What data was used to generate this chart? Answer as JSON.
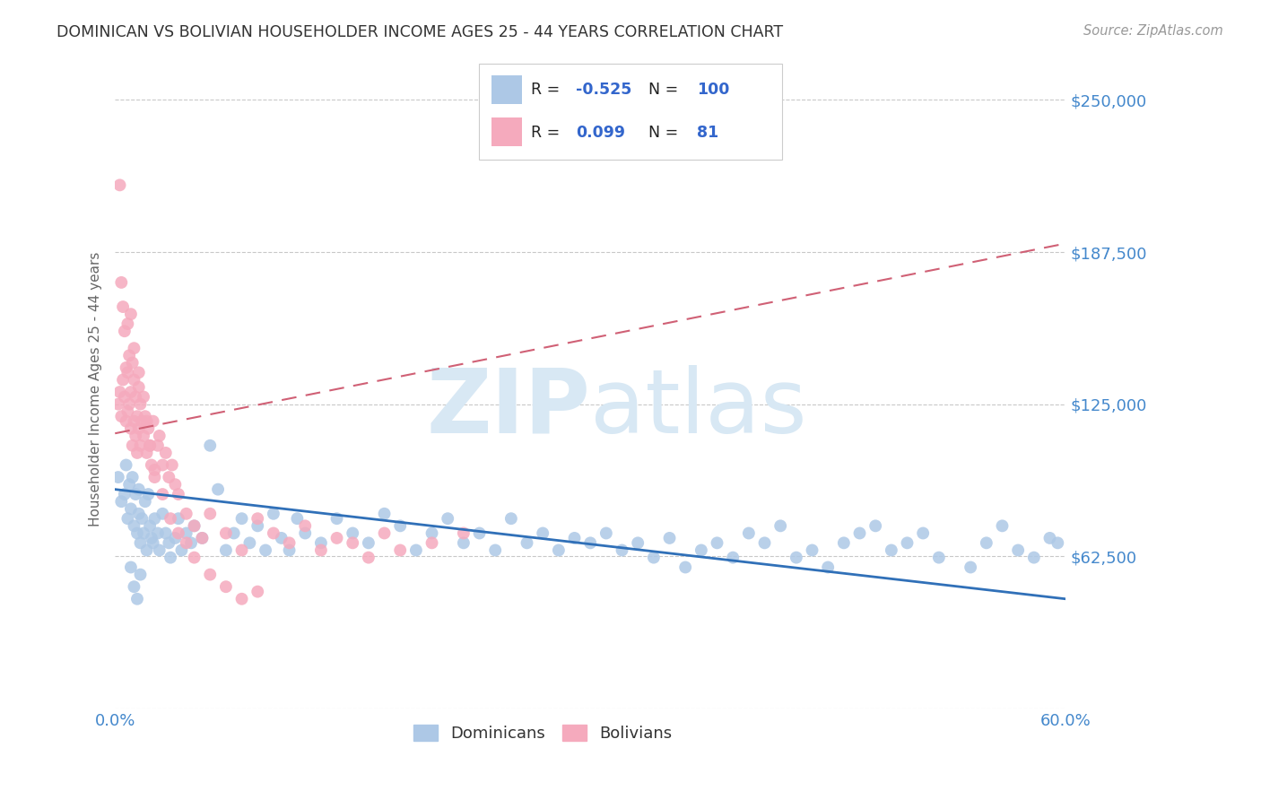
{
  "title": "DOMINICAN VS BOLIVIAN HOUSEHOLDER INCOME AGES 25 - 44 YEARS CORRELATION CHART",
  "source": "Source: ZipAtlas.com",
  "ylabel": "Householder Income Ages 25 - 44 years",
  "xlim": [
    0.0,
    0.6
  ],
  "ylim": [
    0,
    262500
  ],
  "yticks": [
    0,
    62500,
    125000,
    187500,
    250000
  ],
  "ytick_labels": [
    "",
    "$62,500",
    "$125,000",
    "$187,500",
    "$250,000"
  ],
  "xticks": [
    0.0,
    0.1,
    0.2,
    0.3,
    0.4,
    0.5,
    0.6
  ],
  "xtick_labels": [
    "0.0%",
    "",
    "",
    "",
    "",
    "",
    "60.0%"
  ],
  "dominican_R": -0.525,
  "dominican_N": 100,
  "bolivian_R": 0.099,
  "bolivian_N": 81,
  "blue_color": "#adc8e6",
  "pink_color": "#f5aabd",
  "blue_line_color": "#3070b8",
  "pink_line_color": "#d06075",
  "title_color": "#333333",
  "axis_label_color": "#4488cc",
  "watermark_color": "#d8e8f4",
  "grid_color": "#bbbbbb",
  "legend_R_color": "#3366cc",
  "blue_intercept": 90000,
  "blue_slope": -75000,
  "pink_intercept": 113000,
  "pink_slope": 130000,
  "dominican_x": [
    0.002,
    0.004,
    0.006,
    0.007,
    0.008,
    0.009,
    0.01,
    0.011,
    0.012,
    0.013,
    0.014,
    0.015,
    0.015,
    0.016,
    0.017,
    0.018,
    0.019,
    0.02,
    0.021,
    0.022,
    0.023,
    0.024,
    0.025,
    0.027,
    0.028,
    0.03,
    0.032,
    0.034,
    0.035,
    0.038,
    0.04,
    0.042,
    0.045,
    0.048,
    0.05,
    0.055,
    0.06,
    0.065,
    0.07,
    0.075,
    0.08,
    0.085,
    0.09,
    0.095,
    0.1,
    0.105,
    0.11,
    0.115,
    0.12,
    0.13,
    0.14,
    0.15,
    0.16,
    0.17,
    0.18,
    0.19,
    0.2,
    0.21,
    0.22,
    0.23,
    0.24,
    0.25,
    0.26,
    0.27,
    0.28,
    0.29,
    0.3,
    0.31,
    0.32,
    0.33,
    0.34,
    0.35,
    0.36,
    0.37,
    0.38,
    0.39,
    0.4,
    0.41,
    0.42,
    0.43,
    0.44,
    0.45,
    0.46,
    0.47,
    0.48,
    0.49,
    0.5,
    0.51,
    0.52,
    0.54,
    0.55,
    0.56,
    0.57,
    0.58,
    0.59,
    0.595,
    0.01,
    0.012,
    0.014,
    0.016
  ],
  "dominican_y": [
    95000,
    85000,
    88000,
    100000,
    78000,
    92000,
    82000,
    95000,
    75000,
    88000,
    72000,
    80000,
    90000,
    68000,
    78000,
    72000,
    85000,
    65000,
    88000,
    75000,
    70000,
    68000,
    78000,
    72000,
    65000,
    80000,
    72000,
    68000,
    62000,
    70000,
    78000,
    65000,
    72000,
    68000,
    75000,
    70000,
    108000,
    90000,
    65000,
    72000,
    78000,
    68000,
    75000,
    65000,
    80000,
    70000,
    65000,
    78000,
    72000,
    68000,
    78000,
    72000,
    68000,
    80000,
    75000,
    65000,
    72000,
    78000,
    68000,
    72000,
    65000,
    78000,
    68000,
    72000,
    65000,
    70000,
    68000,
    72000,
    65000,
    68000,
    62000,
    70000,
    58000,
    65000,
    68000,
    62000,
    72000,
    68000,
    75000,
    62000,
    65000,
    58000,
    68000,
    72000,
    75000,
    65000,
    68000,
    72000,
    62000,
    58000,
    68000,
    75000,
    65000,
    62000,
    70000,
    68000,
    58000,
    50000,
    45000,
    55000
  ],
  "bolivian_x": [
    0.002,
    0.003,
    0.004,
    0.005,
    0.006,
    0.007,
    0.007,
    0.008,
    0.008,
    0.009,
    0.009,
    0.01,
    0.01,
    0.011,
    0.011,
    0.012,
    0.012,
    0.013,
    0.013,
    0.014,
    0.014,
    0.015,
    0.015,
    0.016,
    0.016,
    0.017,
    0.018,
    0.019,
    0.02,
    0.021,
    0.022,
    0.023,
    0.024,
    0.025,
    0.027,
    0.028,
    0.03,
    0.032,
    0.034,
    0.036,
    0.038,
    0.04,
    0.045,
    0.05,
    0.055,
    0.06,
    0.07,
    0.08,
    0.09,
    0.1,
    0.11,
    0.12,
    0.13,
    0.14,
    0.15,
    0.16,
    0.17,
    0.18,
    0.2,
    0.22,
    0.003,
    0.004,
    0.005,
    0.006,
    0.008,
    0.01,
    0.012,
    0.015,
    0.018,
    0.02,
    0.022,
    0.025,
    0.03,
    0.035,
    0.04,
    0.045,
    0.05,
    0.06,
    0.07,
    0.08,
    0.09
  ],
  "bolivian_y": [
    125000,
    130000,
    120000,
    135000,
    128000,
    118000,
    140000,
    122000,
    138000,
    125000,
    145000,
    130000,
    115000,
    142000,
    108000,
    135000,
    118000,
    128000,
    112000,
    120000,
    105000,
    132000,
    115000,
    125000,
    108000,
    118000,
    112000,
    120000,
    105000,
    115000,
    108000,
    100000,
    118000,
    95000,
    108000,
    112000,
    100000,
    105000,
    95000,
    100000,
    92000,
    88000,
    80000,
    75000,
    70000,
    80000,
    72000,
    65000,
    78000,
    72000,
    68000,
    75000,
    65000,
    70000,
    68000,
    62000,
    72000,
    65000,
    68000,
    72000,
    215000,
    175000,
    165000,
    155000,
    158000,
    162000,
    148000,
    138000,
    128000,
    118000,
    108000,
    98000,
    88000,
    78000,
    72000,
    68000,
    62000,
    55000,
    50000,
    45000,
    48000
  ]
}
